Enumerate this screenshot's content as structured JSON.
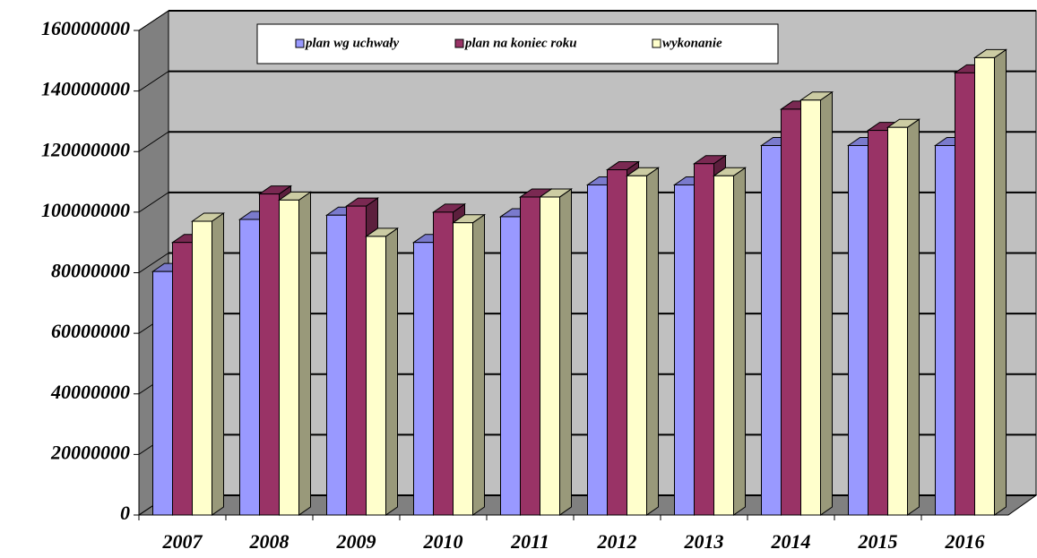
{
  "chart_data": {
    "type": "bar3d",
    "categories": [
      "2007",
      "2008",
      "2009",
      "2010",
      "2011",
      "2012",
      "2013",
      "2014",
      "2015",
      "2016"
    ],
    "series": [
      {
        "name": "plan wg uchwały",
        "color": "#9999ff",
        "values": [
          80400000,
          97600000,
          99000000,
          90000000,
          98500000,
          109000000,
          109000000,
          122000000,
          122000000,
          122000000
        ]
      },
      {
        "name": "plan na koniec roku",
        "color": "#993366",
        "values": [
          90000000,
          106000000,
          102000000,
          100000000,
          105000000,
          114000000,
          116000000,
          134000000,
          127000000,
          146000000
        ]
      },
      {
        "name": "wykonanie",
        "color": "#ffffcc",
        "values": [
          97000000,
          104000000,
          92000000,
          96500000,
          105000000,
          112000000,
          112000000,
          137000000,
          128000000,
          151000000
        ]
      }
    ],
    "ylim": [
      0,
      160000000
    ],
    "yticks": [
      0,
      20000000,
      40000000,
      60000000,
      80000000,
      100000000,
      120000000,
      140000000,
      160000000
    ],
    "grid": true
  }
}
